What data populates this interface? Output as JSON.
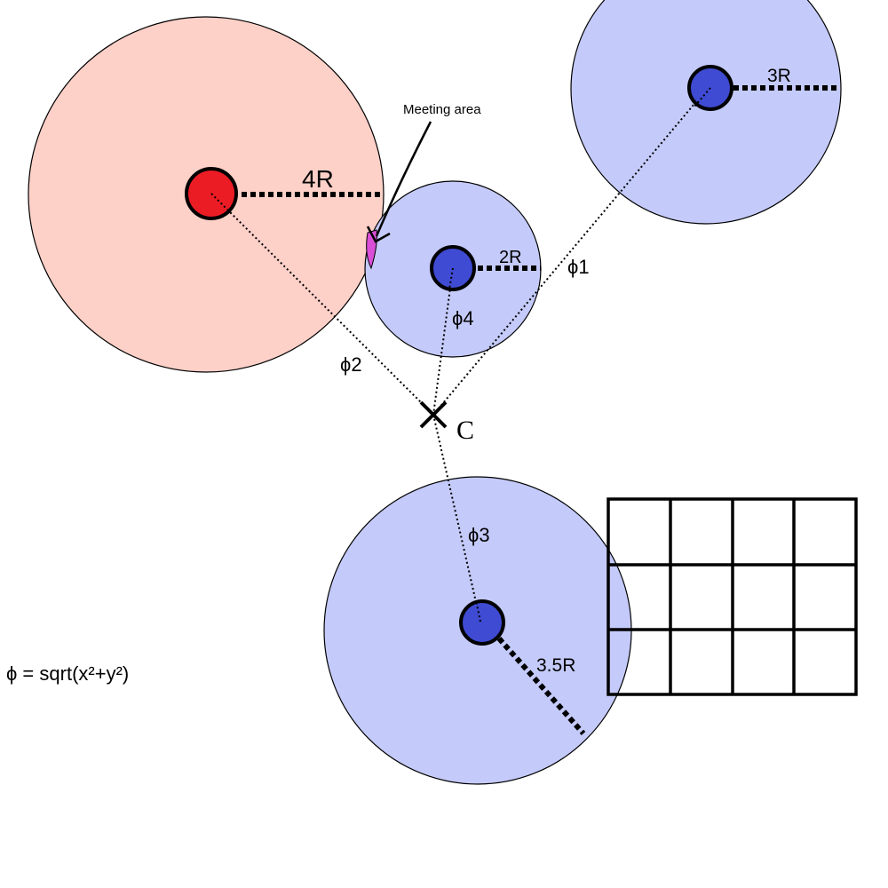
{
  "colors": {
    "red_zone_fill": "#fdd0c8",
    "blue_zone_fill": "#c4caf9",
    "red_core": "#ec1c24",
    "blue_core": "#3f4bd2",
    "overlap": "#d94fd8",
    "ink": "#000000"
  },
  "labels": {
    "meeting_area": "Meeting area",
    "radius_4r": "4R",
    "radius_3r": "3R",
    "radius_2r": "2R",
    "radius_3_5r": "3.5R",
    "phi1": "ϕ1",
    "phi2": "ϕ2",
    "phi3": "ϕ3",
    "phi4": "ϕ4",
    "center": "C",
    "formula": "ϕ = sqrt(x²+y²)"
  },
  "grid": {
    "rows": 3,
    "columns": 4
  }
}
